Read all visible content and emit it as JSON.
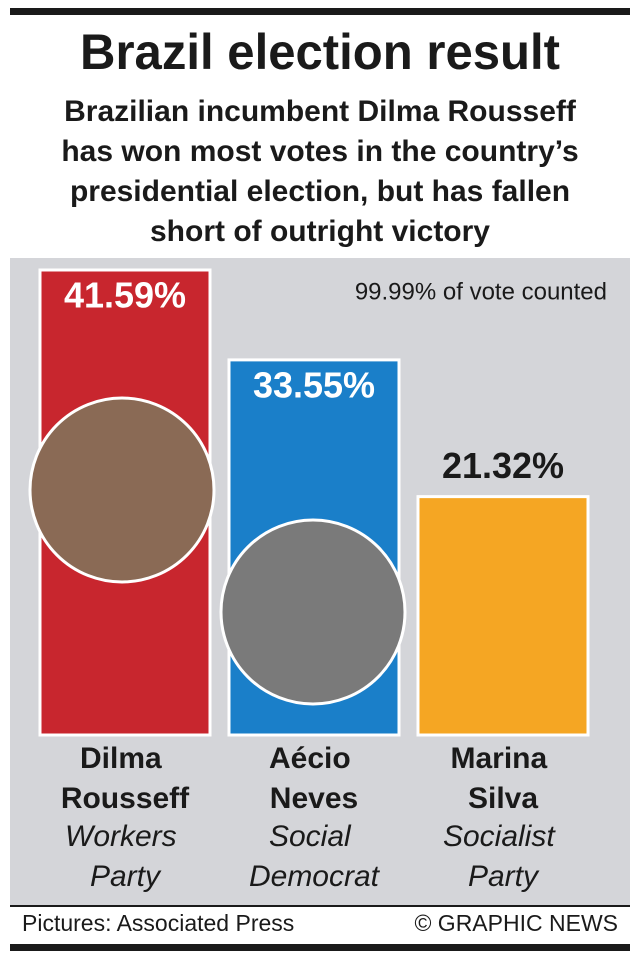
{
  "chart_data": {
    "type": "bar",
    "title": "Brazil election result",
    "subtitle": [
      "Brazilian incumbent Dilma Rousseff",
      "has won most votes in the country’s",
      "presidential election, but has fallen",
      "short of outright victory"
    ],
    "note": "99.99% of vote counted",
    "categories": [
      "Dilma Rousseff",
      "Aécio Neves",
      "Marina Silva"
    ],
    "parties": [
      "Workers Party",
      "Social Democrat",
      "Socialist Party"
    ],
    "values": [
      41.59,
      33.55,
      21.32
    ],
    "value_labels": [
      "41.59%",
      "33.55%",
      "21.32%"
    ],
    "colors": [
      "#c8262e",
      "#1a7fc9",
      "#f5a623"
    ],
    "credit": "Pictures: Associated Press",
    "source": "© GRAPHIC NEWS"
  }
}
